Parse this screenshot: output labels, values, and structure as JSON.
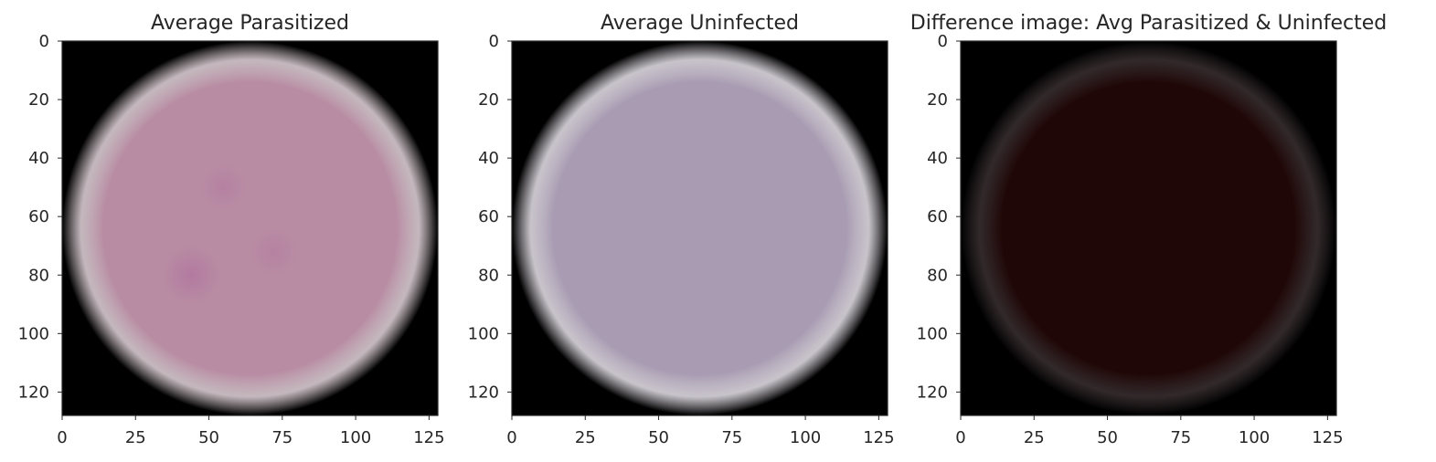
{
  "chart_data": [
    {
      "type": "image",
      "title": "Average Parasitized",
      "xlim": [
        0,
        128
      ],
      "ylim": [
        128,
        0
      ],
      "xticks": [
        0,
        25,
        50,
        75,
        100,
        125
      ],
      "yticks": [
        0,
        20,
        40,
        60,
        80,
        100,
        120
      ],
      "xtick_labels": [
        "0",
        "25",
        "50",
        "75",
        "100",
        "125"
      ],
      "ytick_labels": [
        "0",
        "20",
        "40",
        "60",
        "80",
        "100",
        "120"
      ],
      "grid": false,
      "cell": {
        "center": [
          64,
          64
        ],
        "radius": 64,
        "color": "#b88ca3",
        "edge_color": "#e6d8de",
        "background": "#000000"
      },
      "spots": [
        {
          "x": 44,
          "y": 80,
          "r": 10,
          "color": "#b276a0"
        },
        {
          "x": 55,
          "y": 50,
          "r": 8,
          "color": "#b57fa2"
        },
        {
          "x": 72,
          "y": 72,
          "r": 8,
          "color": "#b67fa2"
        }
      ]
    },
    {
      "type": "image",
      "title": "Average Uninfected",
      "xlim": [
        0,
        128
      ],
      "ylim": [
        128,
        0
      ],
      "xticks": [
        0,
        25,
        50,
        75,
        100,
        125
      ],
      "yticks": [
        0,
        20,
        40,
        60,
        80,
        100,
        120
      ],
      "xtick_labels": [
        "0",
        "25",
        "50",
        "75",
        "100",
        "125"
      ],
      "ytick_labels": [
        "0",
        "20",
        "40",
        "60",
        "80",
        "100",
        "120"
      ],
      "grid": false,
      "cell": {
        "center": [
          64,
          64
        ],
        "radius": 64,
        "color": "#a89bb2",
        "edge_color": "#ebe6ee",
        "background": "#000000"
      },
      "spots": []
    },
    {
      "type": "image",
      "title": "Difference image: Avg Parasitized & Uninfected",
      "xlim": [
        0,
        128
      ],
      "ylim": [
        128,
        0
      ],
      "xticks": [
        0,
        25,
        50,
        75,
        100,
        125
      ],
      "yticks": [
        0,
        20,
        40,
        60,
        80,
        100,
        120
      ],
      "xtick_labels": [
        "0",
        "25",
        "50",
        "75",
        "100",
        "125"
      ],
      "ytick_labels": [
        "0",
        "20",
        "40",
        "60",
        "80",
        "100",
        "120"
      ],
      "grid": false,
      "cell": {
        "center": [
          64,
          64
        ],
        "radius": 64,
        "color": "#200707",
        "edge_color": "#3a3032",
        "background": "#000000"
      },
      "spots": []
    }
  ]
}
